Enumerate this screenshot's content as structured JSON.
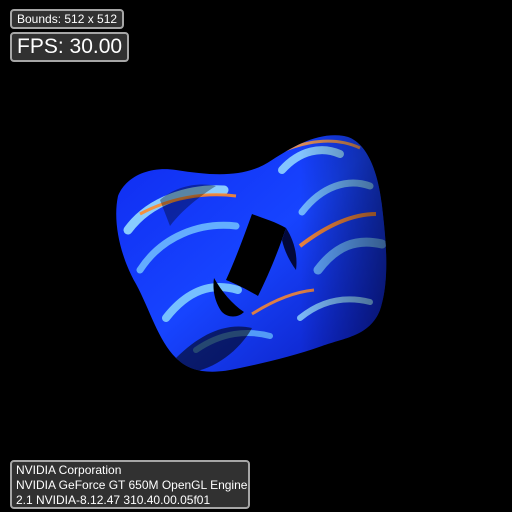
{
  "app": {
    "background_color": "#000000"
  },
  "overlay": {
    "bounds": "Bounds: 512 x 512",
    "fps": "FPS: 30.00",
    "renderer": {
      "vendor": "NVIDIA Corporation",
      "engine": "NVIDIA GeForce GT 650M OpenGL Engine",
      "version": "2.1 NVIDIA-8.12.47 310.40.00.05f01"
    }
  },
  "scene": {
    "object": "twisted-torus-shape",
    "palette": {
      "deep": "#0a1fd6",
      "mid": "#1a6cff",
      "highlight": "#9fe6ff",
      "stripe": "#ff8a2a",
      "shadow": "#000000"
    }
  }
}
